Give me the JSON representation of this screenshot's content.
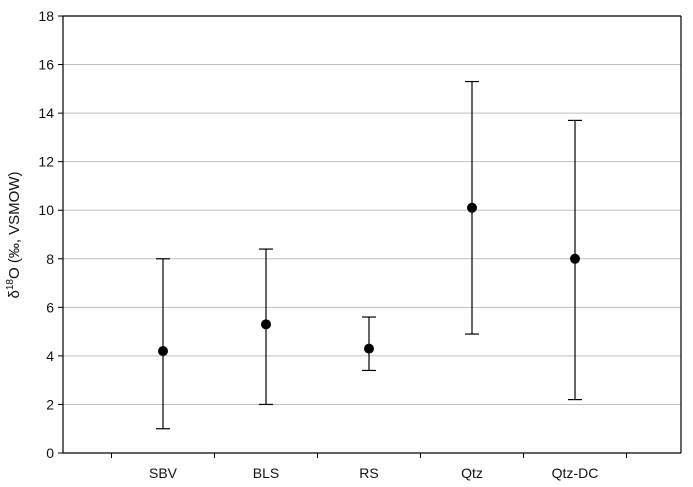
{
  "chart_data": {
    "type": "scatter",
    "title": "",
    "xlabel": "",
    "ylabel": "δ18O (‰, VSMOW)",
    "ylabel_parts": {
      "prefix": "δ",
      "superscript": "18",
      "suffix": "O (‰, VSMOW)"
    },
    "categories": [
      "SBV",
      "BLS",
      "RS",
      "Qtz",
      "Qtz-DC"
    ],
    "series": [
      {
        "values": [
          4.2,
          5.3,
          4.3,
          10.1,
          8.0
        ],
        "error_low": [
          1.0,
          2.0,
          3.4,
          4.9,
          2.2
        ],
        "error_high": [
          8.0,
          8.4,
          5.6,
          15.3,
          13.7
        ]
      }
    ],
    "ylim": [
      0,
      18
    ],
    "yticks": [
      0,
      2,
      4,
      6,
      8,
      10,
      12,
      14,
      16,
      18
    ],
    "grid": true,
    "legend": "none",
    "colors": {
      "marker": "#000000",
      "grid": "#bfbfbf",
      "axis": "#000000"
    }
  }
}
